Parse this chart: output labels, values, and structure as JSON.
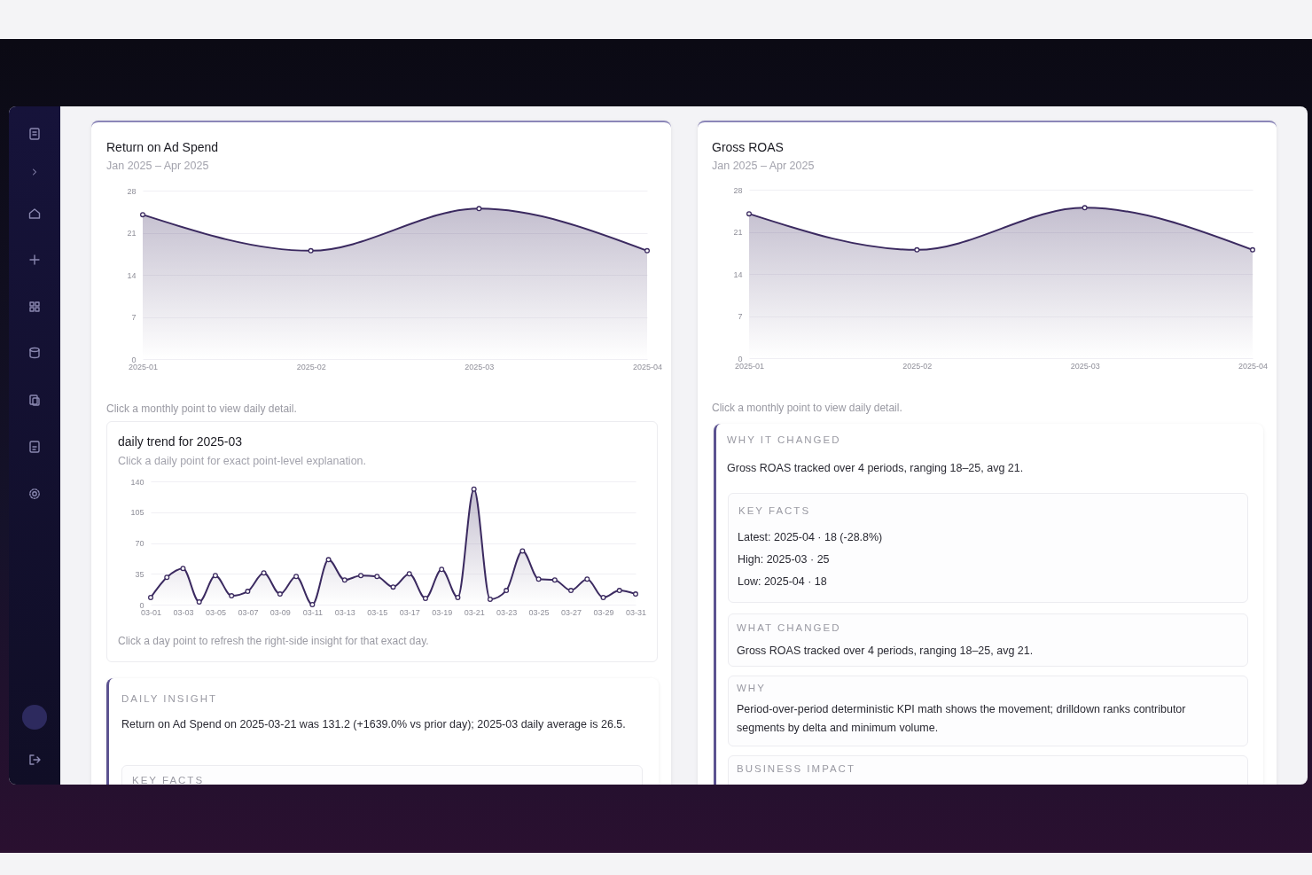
{
  "chart_data": [
    {
      "type": "area",
      "title": "Return on Ad Spend",
      "subtitle": "Jan 2025 – Apr 2025",
      "categories": [
        "2025-01",
        "2025-02",
        "2025-03",
        "2025-04"
      ],
      "values": [
        24,
        18,
        25,
        18
      ],
      "color": "#3b2a60",
      "ylim": [
        0,
        28
      ],
      "yticks": [
        0,
        7,
        14,
        21,
        28
      ],
      "grid": "y",
      "marker": "circle",
      "annotations": [
        "Click a monthly point to view daily detail."
      ]
    },
    {
      "type": "area",
      "title": "Gross ROAS",
      "subtitle": "Jan 2025 – Apr 2025",
      "categories": [
        "2025-01",
        "2025-02",
        "2025-03",
        "2025-04"
      ],
      "values": [
        24,
        18,
        25,
        18
      ],
      "color": "#3b2a60",
      "ylim": [
        0,
        28
      ],
      "yticks": [
        0,
        7,
        14,
        21,
        28
      ],
      "grid": "y",
      "marker": "circle",
      "annotations": [
        "Click a monthly point to view daily detail."
      ]
    },
    {
      "type": "area",
      "title": "daily trend for 2025-03",
      "subtitle": "Click a daily point for exact point-level explanation.",
      "categories": [
        "03-01",
        null,
        "03-03",
        null,
        "03-05",
        null,
        "03-07",
        null,
        "03-09",
        null,
        "03-11",
        null,
        "03-13",
        null,
        "03-15",
        null,
        "03-17",
        null,
        "03-19",
        null,
        "03-21",
        null,
        "03-23",
        null,
        "03-25",
        null,
        "03-27",
        null,
        "03-29",
        null,
        "03-31"
      ],
      "values": [
        8,
        31,
        41,
        3,
        33,
        10,
        15,
        36,
        12,
        32,
        0,
        51,
        28,
        33,
        32,
        20,
        35,
        7,
        40,
        8,
        131.2,
        6,
        16,
        61,
        29,
        28,
        16,
        29,
        8,
        16,
        12
      ],
      "color": "#3b2a60",
      "ylim": [
        0,
        140
      ],
      "yticks": [
        0,
        35,
        70,
        105,
        140
      ],
      "grid": "y",
      "marker": "circle",
      "annotations": [
        "Click a day point to refresh the right-side insight for that exact day."
      ]
    },
    {
      "type": "other",
      "title": "WHY IT CHANGED",
      "annotations": [
        "Gross ROAS tracked over 4 periods, ranging 18–25, avg 21."
      ]
    },
    {
      "type": "other",
      "title": "KEY FACTS",
      "annotations": [
        "Latest: 2025-04 · 18 (-28.8%)",
        "High: 2025-03 · 25",
        "Low: 2025-04 · 18"
      ]
    },
    {
      "type": "other",
      "title": "WHAT CHANGED",
      "annotations": [
        "Gross ROAS tracked over 4 periods, ranging 18–25, avg 21."
      ]
    },
    {
      "type": "other",
      "title": "WHY",
      "annotations": [
        "Period-over-period deterministic KPI math shows the movement; drilldown ranks contributor segments by delta and minimum volume."
      ]
    },
    {
      "type": "other",
      "title": "BUSINESS IMPACT"
    },
    {
      "type": "other",
      "title": "DAILY INSIGHT",
      "annotations": [
        "Return on Ad Spend on 2025-03-21 was 131.2 (+1639.0% vs prior day); 2025-03 daily average is 26.5."
      ]
    },
    {
      "type": "other",
      "title": "KEY FACTS"
    }
  ]
}
